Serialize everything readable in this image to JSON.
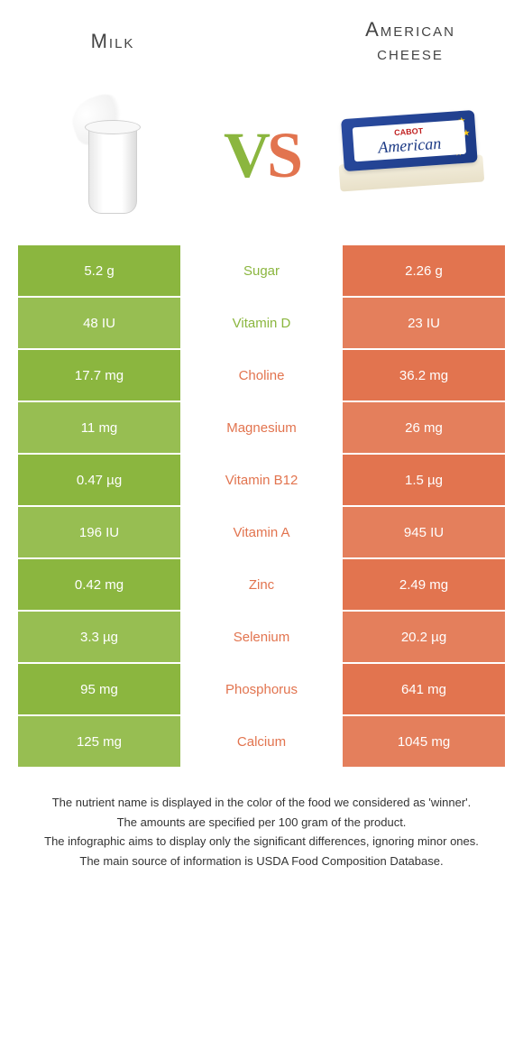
{
  "header": {
    "left_title": "Milk",
    "right_title_line1": "American",
    "right_title_line2": "cheese",
    "vs_text": "VS"
  },
  "colors": {
    "left_color": "#8bb63f",
    "right_color": "#e2744f",
    "left_alt": "#97be52",
    "right_alt": "#e47f5c",
    "mid_text_left": "#8bb63f",
    "mid_text_right": "#e2744f",
    "vs_v": "#8bb63f",
    "vs_s": "#e2744f"
  },
  "rows": [
    {
      "nutrient": "Sugar",
      "left": "5.2 g",
      "right": "2.26 g",
      "winner": "left"
    },
    {
      "nutrient": "Vitamin D",
      "left": "48 IU",
      "right": "23 IU",
      "winner": "left"
    },
    {
      "nutrient": "Choline",
      "left": "17.7 mg",
      "right": "36.2 mg",
      "winner": "right"
    },
    {
      "nutrient": "Magnesium",
      "left": "11 mg",
      "right": "26 mg",
      "winner": "right"
    },
    {
      "nutrient": "Vitamin B12",
      "left": "0.47 µg",
      "right": "1.5 µg",
      "winner": "right"
    },
    {
      "nutrient": "Vitamin A",
      "left": "196 IU",
      "right": "945 IU",
      "winner": "right"
    },
    {
      "nutrient": "Zinc",
      "left": "0.42 mg",
      "right": "2.49 mg",
      "winner": "right"
    },
    {
      "nutrient": "Selenium",
      "left": "3.3 µg",
      "right": "20.2 µg",
      "winner": "right"
    },
    {
      "nutrient": "Phosphorus",
      "left": "95 mg",
      "right": "641 mg",
      "winner": "right"
    },
    {
      "nutrient": "Calcium",
      "left": "125 mg",
      "right": "1045 mg",
      "winner": "right"
    }
  ],
  "footer": {
    "line1": "The nutrient name is displayed in the color of the food we considered as 'winner'.",
    "line2": "The amounts are specified per 100 gram of the product.",
    "line3": "The infographic aims to display only the significant differences, ignoring minor ones.",
    "line4": "The main source of information is USDA Food Composition Database."
  },
  "cheese_box": {
    "brand": "CABOT",
    "label": "American"
  }
}
